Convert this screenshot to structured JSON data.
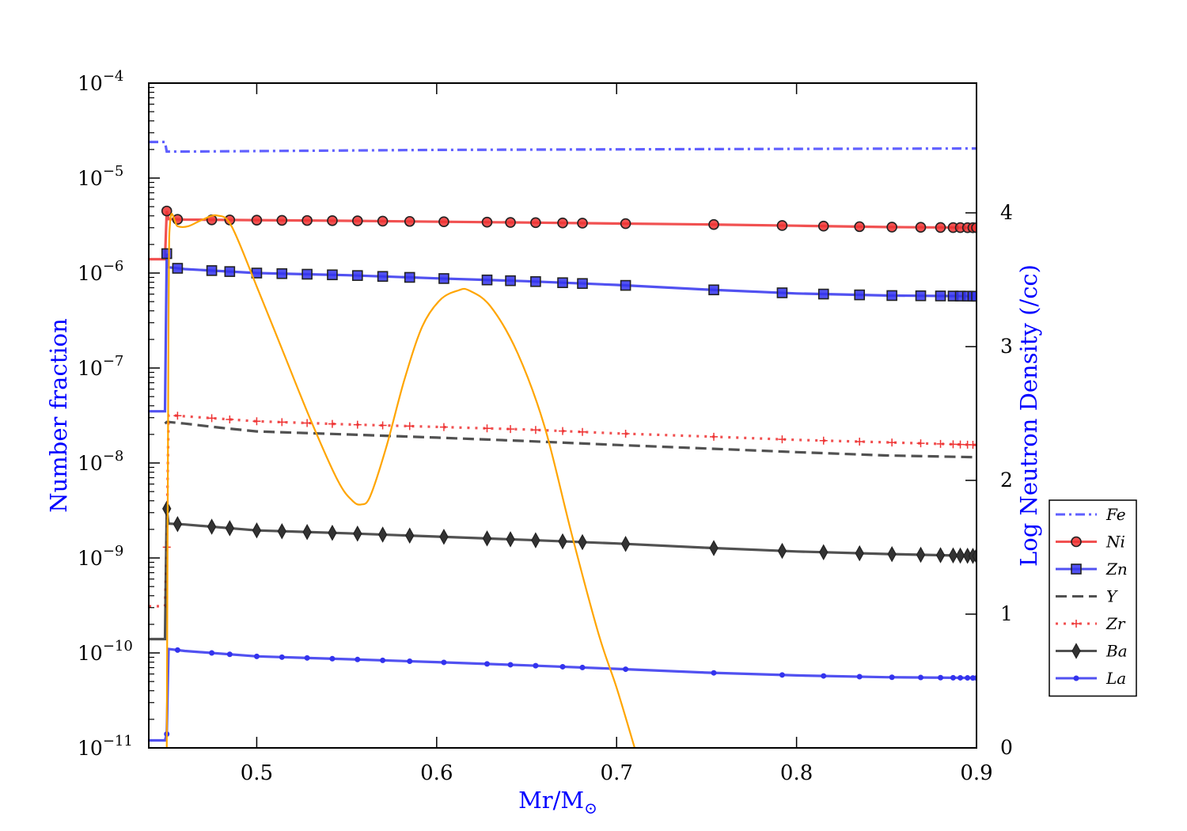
{
  "chart_data": {
    "type": "line",
    "xlabel": "Mr/M",
    "xlabel_sub": "⊙",
    "ylabel": "Number fraction",
    "y2label": "Log Neutron Density (/cc)",
    "label_color": "#0000ff",
    "xlim": [
      0.44,
      0.9
    ],
    "ylim_log10": [
      -11,
      -4
    ],
    "y2lim": [
      0,
      4.97
    ],
    "x_ticks": [
      {
        "value": 0.5,
        "label": "0.5"
      },
      {
        "value": 0.6,
        "label": "0.6"
      },
      {
        "value": 0.7,
        "label": "0.7"
      },
      {
        "value": 0.8,
        "label": "0.8"
      },
      {
        "value": 0.9,
        "label": "0.9"
      }
    ],
    "y_ticks": [
      {
        "exp": -4,
        "base": "10",
        "sup": "−4"
      },
      {
        "exp": -5,
        "base": "10",
        "sup": "−5"
      },
      {
        "exp": -6,
        "base": "10",
        "sup": "−6"
      },
      {
        "exp": -7,
        "base": "10",
        "sup": "−7"
      },
      {
        "exp": -8,
        "base": "10",
        "sup": "−8"
      },
      {
        "exp": -9,
        "base": "10",
        "sup": "−9"
      },
      {
        "exp": -10,
        "base": "10",
        "sup": "−10"
      },
      {
        "exp": -11,
        "base": "10",
        "sup": "−11"
      }
    ],
    "y2_ticks": [
      {
        "value": 0,
        "label": "0"
      },
      {
        "value": 1,
        "label": "1"
      },
      {
        "value": 2,
        "label": "2"
      },
      {
        "value": 3,
        "label": "3"
      },
      {
        "value": 4,
        "label": "4"
      }
    ],
    "legend_position": "right",
    "marker_x": [
      0.45,
      0.456,
      0.475,
      0.485,
      0.5,
      0.514,
      0.528,
      0.542,
      0.556,
      0.57,
      0.585,
      0.604,
      0.628,
      0.641,
      0.655,
      0.67,
      0.681,
      0.705,
      0.754,
      0.792,
      0.815,
      0.835,
      0.853,
      0.869,
      0.88,
      0.887,
      0.891,
      0.895,
      0.898,
      0.9
    ],
    "series": [
      {
        "name": "Fe",
        "color": "#4444ff",
        "dash": "dashdot",
        "marker": "none",
        "x": [
          0.44,
          0.449,
          0.45,
          0.451,
          0.46,
          0.6,
          0.75,
          0.9
        ],
        "y": [
          2.4e-05,
          2.4e-05,
          1.9e-05,
          1.9e-05,
          1.9e-05,
          1.98e-05,
          2.02e-05,
          2.05e-05
        ]
      },
      {
        "name": "Ni",
        "color": "#ee3333",
        "dash": "solid",
        "marker": "circle",
        "x": [
          0.44,
          0.449,
          0.45,
          0.451,
          0.46,
          0.55,
          0.65,
          0.75,
          0.8,
          0.85,
          0.9
        ],
        "y": [
          1.4e-06,
          1.4e-06,
          4.5e-06,
          3.7e-06,
          3.65e-06,
          3.55e-06,
          3.4e-06,
          3.25e-06,
          3.15e-06,
          3.05e-06,
          3e-06
        ]
      },
      {
        "name": "Zn",
        "color": "#3333ee",
        "dash": "solid",
        "marker": "square",
        "x": [
          0.44,
          0.449,
          0.45,
          0.451,
          0.46,
          0.5,
          0.55,
          0.6,
          0.65,
          0.7,
          0.75,
          0.8,
          0.85,
          0.9
        ],
        "y": [
          3.5e-08,
          3.5e-08,
          1.6e-06,
          1.15e-06,
          1.1e-06,
          1e-06,
          9.5e-07,
          8.8e-07,
          8.2e-07,
          7.5e-07,
          6.7e-07,
          6.1e-07,
          5.8e-07,
          5.7e-07
        ]
      },
      {
        "name": "Y",
        "color": "#333333",
        "dash": "dashed",
        "marker": "none",
        "x": [
          0.449,
          0.45,
          0.451,
          0.46,
          0.48,
          0.5,
          0.55,
          0.6,
          0.65,
          0.7,
          0.75,
          0.8,
          0.85,
          0.9
        ],
        "y": [
          2.6e-08,
          2.7e-08,
          2.7e-08,
          2.6e-08,
          2.35e-08,
          2.15e-08,
          2e-08,
          1.85e-08,
          1.7e-08,
          1.55e-08,
          1.42e-08,
          1.3e-08,
          1.2e-08,
          1.15e-08
        ]
      },
      {
        "name": "Zr",
        "color": "#ee3333",
        "dash": "dotted",
        "marker": "plus",
        "x": [
          0.44,
          0.449,
          0.45,
          0.451,
          0.46,
          0.5,
          0.55,
          0.6,
          0.65,
          0.7,
          0.75,
          0.8,
          0.85,
          0.9
        ],
        "y": [
          3.1e-10,
          3.1e-10,
          1.3e-09,
          3.2e-08,
          3.1e-08,
          2.75e-08,
          2.55e-08,
          2.4e-08,
          2.25e-08,
          2.05e-08,
          1.9e-08,
          1.75e-08,
          1.65e-08,
          1.55e-08
        ]
      },
      {
        "name": "Ba",
        "color": "#333333",
        "dash": "solid",
        "marker": "diamond",
        "x": [
          0.44,
          0.449,
          0.45,
          0.451,
          0.46,
          0.5,
          0.55,
          0.6,
          0.65,
          0.7,
          0.75,
          0.8,
          0.85,
          0.9
        ],
        "y": [
          1.4e-10,
          1.4e-10,
          3.3e-09,
          2.3e-09,
          2.25e-09,
          1.95e-09,
          1.82e-09,
          1.68e-09,
          1.55e-09,
          1.42e-09,
          1.28e-09,
          1.17e-09,
          1.1e-09,
          1.05e-09
        ]
      },
      {
        "name": "La",
        "color": "#3333ee",
        "dash": "solid",
        "marker": "dot",
        "x": [
          0.44,
          0.449,
          0.45,
          0.451,
          0.46,
          0.5,
          0.55,
          0.6,
          0.65,
          0.7,
          0.75,
          0.8,
          0.85,
          0.9
        ],
        "y": [
          1.2e-11,
          1.2e-11,
          1.4e-11,
          1.1e-10,
          1.05e-10,
          9.2e-11,
          8.6e-11,
          8e-11,
          7.4e-11,
          6.8e-11,
          6.2e-11,
          5.8e-11,
          5.55e-11,
          5.45e-11
        ]
      }
    ],
    "neutron_density": {
      "color": "#ffa500",
      "axis": "right",
      "x": [
        0.45,
        0.451,
        0.452,
        0.456,
        0.462,
        0.47,
        0.478,
        0.486,
        0.5,
        0.515,
        0.53,
        0.545,
        0.553,
        0.558,
        0.563,
        0.572,
        0.582,
        0.592,
        0.602,
        0.612,
        0.618,
        0.63,
        0.645,
        0.66,
        0.675,
        0.69,
        0.7,
        0.71
      ],
      "y": [
        0.0,
        3.2,
        3.95,
        3.9,
        3.9,
        3.95,
        3.98,
        3.9,
        3.45,
        2.95,
        2.45,
        2.0,
        1.85,
        1.82,
        1.88,
        2.25,
        2.75,
        3.15,
        3.35,
        3.42,
        3.42,
        3.3,
        2.95,
        2.4,
        1.6,
        0.85,
        0.45,
        0.0
      ]
    }
  }
}
